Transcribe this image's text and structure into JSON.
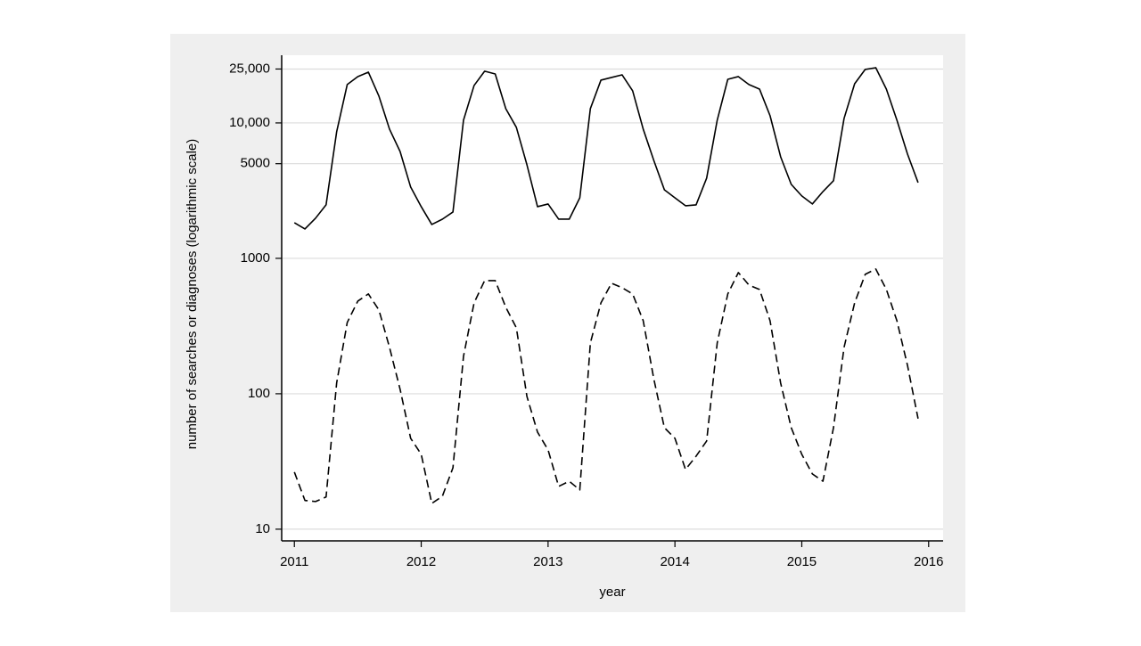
{
  "chart_data": {
    "type": "line",
    "x_label": "year",
    "y_label": "number of searches or diagnoses (logarithmic scale)",
    "log_y": true,
    "grid": true,
    "xlim": [
      2010.9,
      2016.1
    ],
    "xticks": [
      2011,
      2012,
      2013,
      2014,
      2015,
      2016
    ],
    "ylim": [
      8.2,
      31600
    ],
    "yticks": [
      10,
      100,
      1000,
      5000,
      {
        "value": 10000,
        "label": "10,000"
      },
      {
        "value": 25000,
        "label": "25,000"
      }
    ],
    "x": [
      2011,
      2011.0833,
      2011.1667,
      2011.25,
      2011.3333,
      2011.4167,
      2011.5,
      2011.5833,
      2011.6667,
      2011.75,
      2011.8333,
      2011.9167,
      2012,
      2012.0833,
      2012.1667,
      2012.25,
      2012.3333,
      2012.4167,
      2012.5,
      2012.5833,
      2012.6667,
      2012.75,
      2012.8333,
      2012.9167,
      2013,
      2013.0833,
      2013.1667,
      2013.25,
      2013.3333,
      2013.4167,
      2013.5,
      2013.5833,
      2013.6667,
      2013.75,
      2013.8333,
      2013.9167,
      2014,
      2014.0833,
      2014.1667,
      2014.25,
      2014.3333,
      2014.4167,
      2014.5,
      2014.5833,
      2014.6667,
      2014.75,
      2014.8333,
      2014.9167,
      2015,
      2015.0833,
      2015.1667,
      2015.25,
      2015.3333,
      2015.4167,
      2015.5,
      2015.5833,
      2015.6667,
      2015.75,
      2015.8333,
      2015.9167
    ],
    "series": [
      {
        "color": "#000000",
        "style": "solid",
        "values": [
          1833,
          1648,
          1977,
          2483,
          8590,
          19190,
          21980,
          23710,
          15750,
          8995,
          6152,
          3360,
          2407,
          1778,
          1946,
          2198,
          10470,
          18900,
          24100,
          23000,
          12740,
          9270,
          4910,
          2407,
          2520,
          1946,
          1946,
          2800,
          12740,
          20700,
          21660,
          22650,
          17260,
          8995,
          5290,
          3210,
          2800,
          2445,
          2483,
          3910,
          10470,
          20990,
          21980,
          19190,
          17780,
          11300,
          5620,
          3520,
          2890,
          2520,
          3110,
          3740,
          10790,
          19450,
          24830,
          25570,
          17780,
          10470,
          5890,
          3625
        ]
      },
      {
        "color": "#000000",
        "style": "dashed",
        "values": [
          26.4,
          16.3,
          16.0,
          17.3,
          120,
          336,
          483,
          546,
          415,
          220,
          108,
          46.9,
          35.7,
          15.5,
          17.5,
          28.4,
          189,
          469,
          685,
          685,
          435,
          307,
          95.5,
          52.1,
          38.5,
          20.7,
          22.6,
          19.5,
          237,
          469,
          655,
          607,
          546,
          346,
          129,
          56.2,
          46.9,
          27.6,
          34.6,
          44.8,
          237,
          546,
          785,
          635,
          589,
          346,
          120,
          56.2,
          35.7,
          25.6,
          22.6,
          56.2,
          220,
          469,
          762,
          834,
          589,
          346,
          162,
          65.5
        ]
      }
    ]
  }
}
